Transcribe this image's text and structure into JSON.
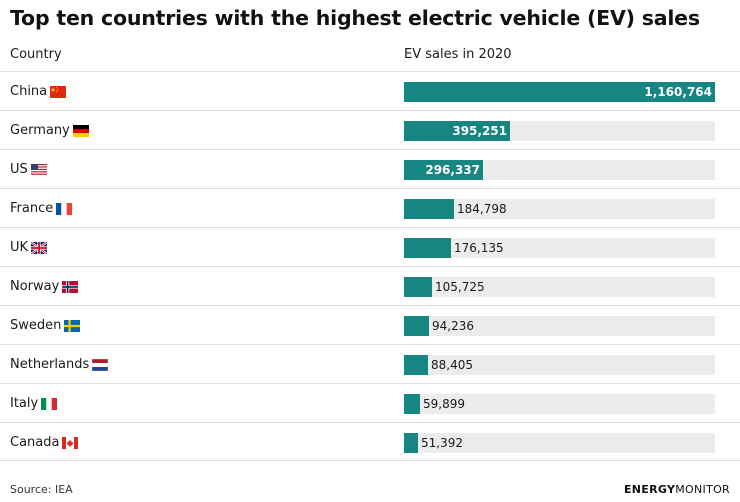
{
  "chart_data": {
    "type": "bar",
    "title": "Top ten countries with the highest electric vehicle (EV) sales",
    "column_headers": {
      "category": "Country",
      "value": "EV sales in 2020"
    },
    "categories": [
      "China",
      "Germany",
      "US",
      "France",
      "UK",
      "Norway",
      "Sweden",
      "Netherlands",
      "Italy",
      "Canada"
    ],
    "values": [
      1160764,
      395251,
      296337,
      184798,
      176135,
      105725,
      94236,
      88405,
      59899,
      51392
    ],
    "value_labels": [
      "1,160,764",
      "395,251",
      "296,337",
      "184,798",
      "176,135",
      "105,725",
      "94,236",
      "88,405",
      "59,899",
      "51,392"
    ],
    "flags": [
      "flag-china-icon",
      "flag-germany-icon",
      "flag-us-icon",
      "flag-france-icon",
      "flag-uk-icon",
      "flag-norway-icon",
      "flag-sweden-icon",
      "flag-netherlands-icon",
      "flag-italy-icon",
      "flag-canada-icon"
    ],
    "xlim": [
      0,
      1160764
    ],
    "orientation": "horizontal",
    "grid": false,
    "legend": "none"
  },
  "colors": {
    "bar": "#178582",
    "track": "#ececec"
  },
  "footer": {
    "source": "Source: IEA",
    "brand_bold": "ENERGY",
    "brand_regular": "MONITOR"
  }
}
